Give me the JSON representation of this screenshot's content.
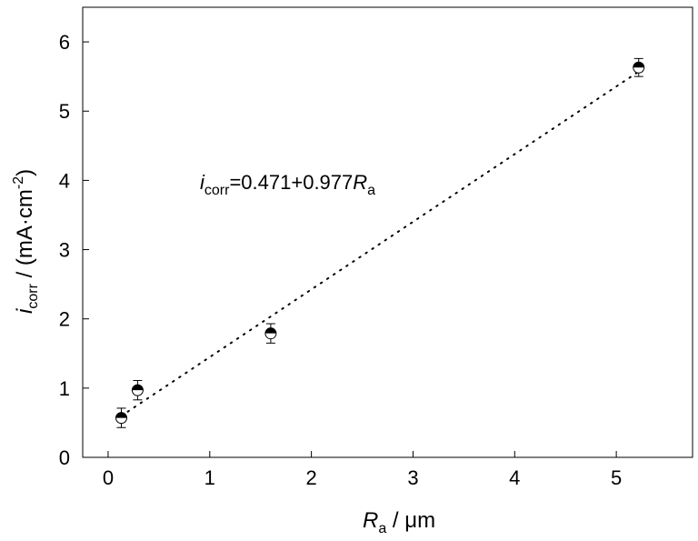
{
  "chart_data": {
    "type": "scatter",
    "xlim": [
      -0.25,
      5.75
    ],
    "ylim": [
      0,
      6.5
    ],
    "x_ticks": [
      0,
      1,
      2,
      3,
      4,
      5
    ],
    "y_ticks": [
      0,
      1,
      2,
      3,
      4,
      5,
      6
    ],
    "x_tick_labels": [
      "0",
      "1",
      "2",
      "3",
      "4",
      "5"
    ],
    "y_tick_labels": [
      "0",
      "1",
      "2",
      "3",
      "4",
      "5",
      "6"
    ],
    "xlabel": {
      "main": "R",
      "sub": "a",
      "unit": " / μm"
    },
    "ylabel": {
      "main": "i",
      "sub": "corr",
      "unit": " / (mA·cm",
      "sup": "-2",
      "close": ")"
    },
    "points": [
      {
        "x": 0.13,
        "y": 0.57,
        "err": 0.14
      },
      {
        "x": 0.29,
        "y": 0.97,
        "err": 0.14
      },
      {
        "x": 1.6,
        "y": 1.79,
        "err": 0.14
      },
      {
        "x": 5.22,
        "y": 5.63,
        "err": 0.13
      }
    ],
    "fit": {
      "intercept": 0.471,
      "slope": 0.977,
      "x_range": [
        0.13,
        5.22
      ],
      "style": "dotted"
    },
    "annotation": {
      "var": "i",
      "sub": "corr",
      "body": "=0.471+0.977",
      "xvar": "R",
      "xsub": "a"
    },
    "grid": false,
    "marker": "half-filled-circle"
  }
}
